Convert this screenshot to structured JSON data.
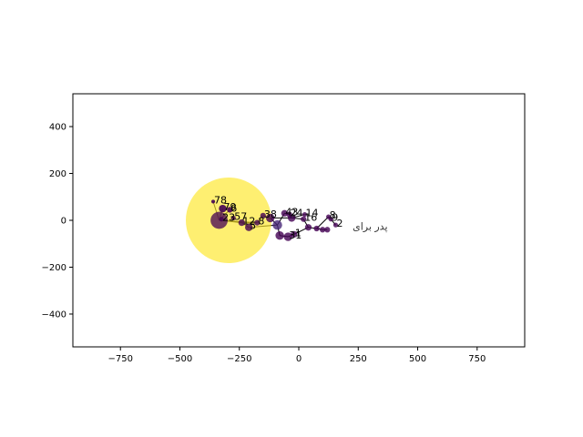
{
  "chart_data": {
    "type": "scatter",
    "title": "",
    "xlabel": "",
    "ylabel": "",
    "xlim": [
      -950,
      950
    ],
    "ylim": [
      -540,
      540
    ],
    "xticks": [
      -750,
      -500,
      -250,
      0,
      250,
      500,
      750
    ],
    "yticks": [
      -400,
      -200,
      0,
      200,
      400
    ],
    "xtick_labels": [
      "−750",
      "−500",
      "−250",
      "0",
      "250",
      "500",
      "750"
    ],
    "ytick_labels": [
      "−400",
      "−200",
      "0",
      "200",
      "400"
    ],
    "grid": false,
    "legend": "none",
    "colors": {
      "axis": "#000000",
      "big_node": "#fde725",
      "node_dark": "#440154",
      "node_mid": "#482878",
      "edge": "#000000"
    },
    "annotation": {
      "text": "پدر برای",
      "x": 300,
      "y": -40
    },
    "nodes": [
      {
        "id": "78",
        "x": -360,
        "y": 80,
        "size": 4,
        "color": "#440154",
        "alpha": 0.9,
        "label": "78"
      },
      {
        "id": "79",
        "x": -320,
        "y": 50,
        "size": 8,
        "color": "#440154",
        "alpha": 0.9,
        "label": "79"
      },
      {
        "id": "6",
        "x": -290,
        "y": 45,
        "size": 6,
        "color": "#440154",
        "alpha": 0.9,
        "label": "6"
      },
      {
        "id": "hub",
        "x": -295,
        "y": 0,
        "size": 90,
        "color": "#fde725",
        "alpha": 0.65,
        "label": ""
      },
      {
        "id": "hub2",
        "x": -335,
        "y": 0,
        "size": 18,
        "color": "#440154",
        "alpha": 0.75,
        "label": ""
      },
      {
        "id": "23",
        "x": -325,
        "y": 5,
        "size": 5,
        "color": "#440154",
        "alpha": 0.8,
        "label": "23"
      },
      {
        "id": "57",
        "x": -275,
        "y": 10,
        "size": 5,
        "color": "#440154",
        "alpha": 0.8,
        "label": "57"
      },
      {
        "id": "12",
        "x": -240,
        "y": -10,
        "size": 7,
        "color": "#440154",
        "alpha": 0.8,
        "label": "12"
      },
      {
        "id": "5",
        "x": -210,
        "y": -30,
        "size": 8,
        "color": "#440154",
        "alpha": 0.8,
        "label": "5"
      },
      {
        "id": "8",
        "x": -175,
        "y": -10,
        "size": 6,
        "color": "#440154",
        "alpha": 0.8,
        "label": "8"
      },
      {
        "id": "38",
        "x": -150,
        "y": 20,
        "size": 6,
        "color": "#440154",
        "alpha": 0.8,
        "label": "38"
      },
      {
        "id": "21",
        "x": -120,
        "y": 10,
        "size": 9,
        "color": "#440154",
        "alpha": 0.8,
        "label": ""
      },
      {
        "id": "44",
        "x": -90,
        "y": -20,
        "size": 10,
        "color": "#482878",
        "alpha": 0.8,
        "label": ""
      },
      {
        "id": "43",
        "x": -60,
        "y": 30,
        "size": 7,
        "color": "#440154",
        "alpha": 0.8,
        "label": "43"
      },
      {
        "id": "24",
        "x": -40,
        "y": 25,
        "size": 6,
        "color": "#440154",
        "alpha": 0.8,
        "label": "24"
      },
      {
        "id": "51",
        "x": -30,
        "y": 10,
        "size": 8,
        "color": "#440154",
        "alpha": 0.8,
        "label": ""
      },
      {
        "id": "67",
        "x": -80,
        "y": -65,
        "size": 9,
        "color": "#440154",
        "alpha": 0.8,
        "label": ""
      },
      {
        "id": "31",
        "x": -45,
        "y": -70,
        "size": 9,
        "color": "#440154",
        "alpha": 0.8,
        "label": "31"
      },
      {
        "id": "1",
        "x": -20,
        "y": -60,
        "size": 7,
        "color": "#440154",
        "alpha": 0.8,
        "label": "1"
      },
      {
        "id": "14",
        "x": 25,
        "y": 25,
        "size": 5,
        "color": "#440154",
        "alpha": 0.8,
        "label": "14"
      },
      {
        "id": "16",
        "x": 20,
        "y": 5,
        "size": 6,
        "color": "#440154",
        "alpha": 0.8,
        "label": "16"
      },
      {
        "id": "2",
        "x": 40,
        "y": -30,
        "size": 7,
        "color": "#440154",
        "alpha": 0.8,
        "label": ""
      },
      {
        "id": "70",
        "x": 75,
        "y": -35,
        "size": 6,
        "color": "#440154",
        "alpha": 0.8,
        "label": ""
      },
      {
        "id": "8b",
        "x": 125,
        "y": 15,
        "size": 5,
        "color": "#440154",
        "alpha": 0.8,
        "label": "8"
      },
      {
        "id": "9",
        "x": 135,
        "y": 5,
        "size": 5,
        "color": "#440154",
        "alpha": 0.8,
        "label": "9"
      },
      {
        "id": "2b",
        "x": 155,
        "y": -20,
        "size": 5,
        "color": "#440154",
        "alpha": 0.8,
        "label": "2"
      },
      {
        "id": "s1",
        "x": 100,
        "y": -40,
        "size": 6,
        "color": "#440154",
        "alpha": 0.8,
        "label": ""
      },
      {
        "id": "s2",
        "x": 120,
        "y": -40,
        "size": 6,
        "color": "#440154",
        "alpha": 0.8,
        "label": ""
      }
    ],
    "edges": [
      [
        "78",
        "hub2"
      ],
      [
        "79",
        "hub2"
      ],
      [
        "6",
        "hub2"
      ],
      [
        "23",
        "hub2"
      ],
      [
        "57",
        "hub"
      ],
      [
        "hub2",
        "12"
      ],
      [
        "12",
        "5"
      ],
      [
        "12",
        "8"
      ],
      [
        "8",
        "38"
      ],
      [
        "38",
        "21"
      ],
      [
        "21",
        "44"
      ],
      [
        "44",
        "43"
      ],
      [
        "43",
        "24"
      ],
      [
        "24",
        "51"
      ],
      [
        "44",
        "67"
      ],
      [
        "67",
        "31"
      ],
      [
        "31",
        "1"
      ],
      [
        "51",
        "14"
      ],
      [
        "51",
        "16"
      ],
      [
        "16",
        "2"
      ],
      [
        "2",
        "70"
      ],
      [
        "70",
        "8b"
      ],
      [
        "8b",
        "9"
      ],
      [
        "9",
        "2b"
      ],
      [
        "70",
        "s1"
      ],
      [
        "s1",
        "s2"
      ],
      [
        "1",
        "2"
      ],
      [
        "5",
        "44"
      ],
      [
        "hub2",
        "8"
      ],
      [
        "21",
        "51"
      ]
    ]
  }
}
